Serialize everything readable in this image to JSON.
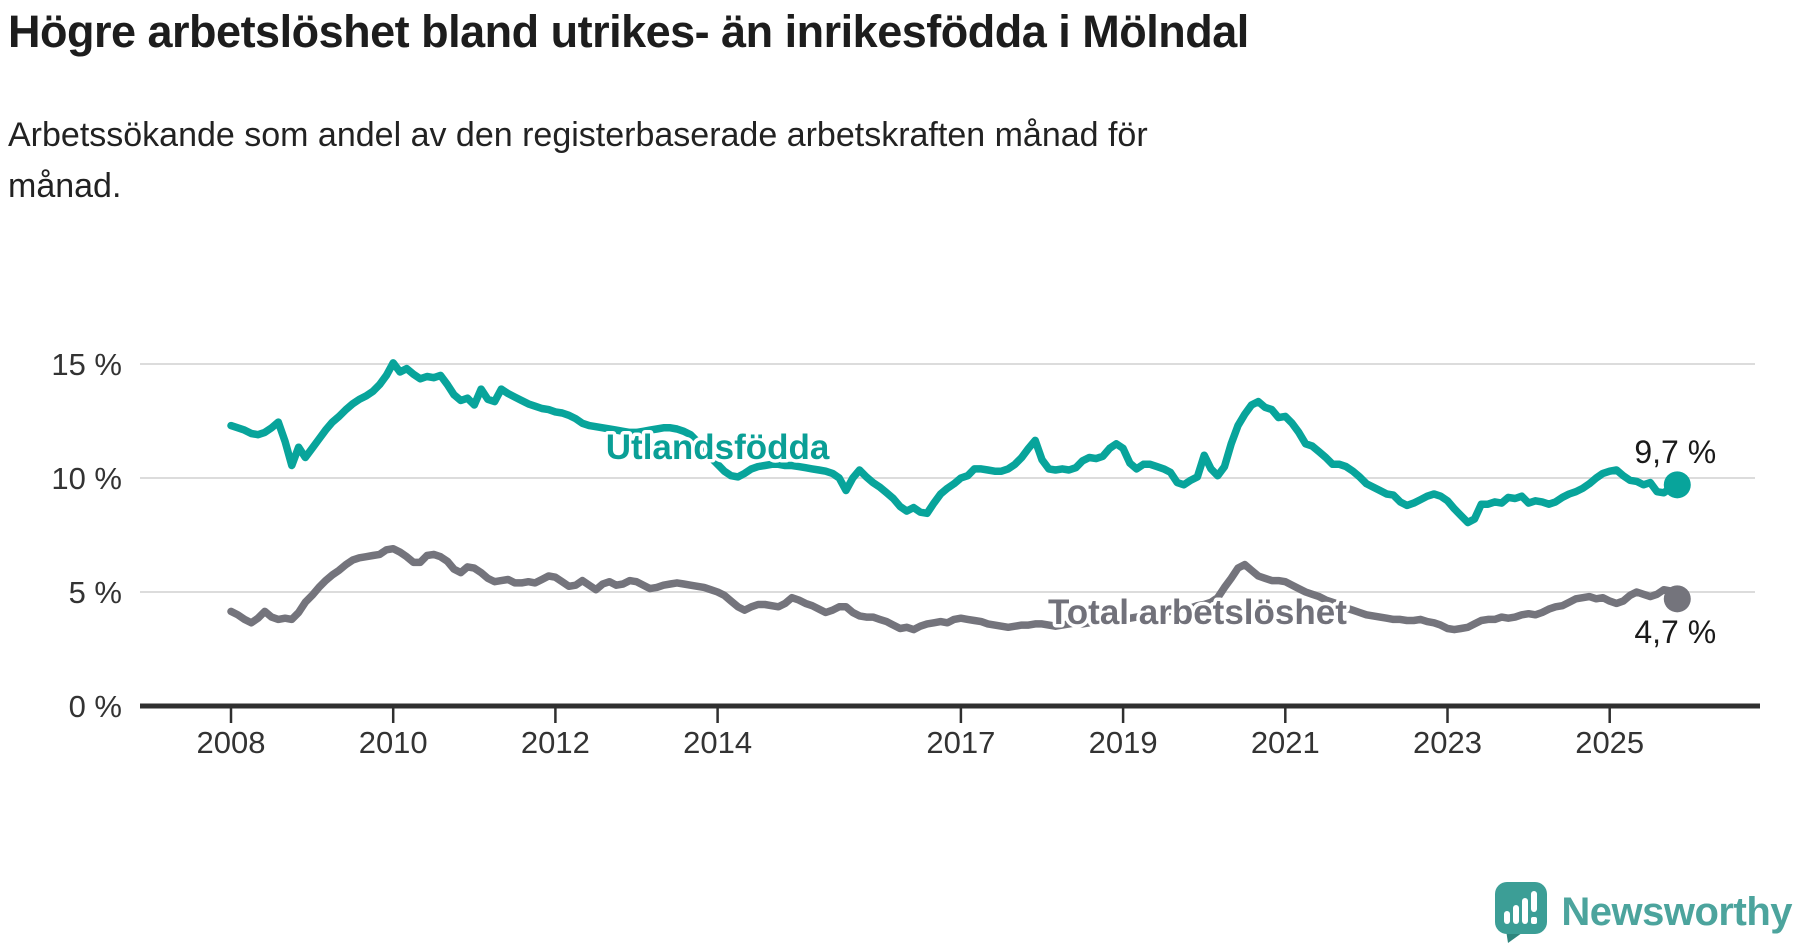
{
  "header": {
    "title": "Högre arbetslöshet bland utrikes- än inrikesfödda i Mölndal",
    "subtitle_line1": "Arbetssökande som andel av den registerbaserade arbetskraften månad för",
    "subtitle_line2": "månad."
  },
  "footer": {
    "brand": "Newsworthy",
    "brand_color": "#4CA49D",
    "logo_icon": "newsworthy-speech-bubble-bar-chart-icon"
  },
  "chart_data": {
    "type": "line",
    "title": "Högre arbetslöshet bland utrikes- än inrikesfödda i Mölndal",
    "x_start": "2008-01",
    "x_end": "2025-11",
    "frequency": "monthly",
    "grid": "horizontal",
    "ylim": [
      0,
      16
    ],
    "axis_color": "#2f2f2f",
    "gridline_color": "#dcdcdc",
    "tick_label_color": "#333333",
    "x_ticks": [
      2008,
      2010,
      2012,
      2014,
      2017,
      2019,
      2021,
      2023,
      2025
    ],
    "y_ticks": [
      {
        "value": 15,
        "label": "15 %"
      },
      {
        "value": 10,
        "label": "10 %"
      },
      {
        "value": 5,
        "label": "5 %"
      },
      {
        "value": 0,
        "label": "0 %"
      }
    ],
    "series": [
      {
        "name": "Utlandsfödda",
        "color": "#08a49b",
        "label_color": "#0a9f96",
        "end_label": "9,7 %",
        "end_value": 9.7,
        "end_label_position": "above",
        "label_anchor": {
          "month_index": 72,
          "value": 11.35
        },
        "values": [
          12.3,
          12.2,
          12.1,
          11.95,
          11.9,
          12.0,
          12.2,
          12.45,
          11.6,
          10.55,
          11.35,
          10.9,
          11.3,
          11.7,
          12.1,
          12.45,
          12.7,
          13.0,
          13.25,
          13.45,
          13.6,
          13.8,
          14.1,
          14.5,
          15.05,
          14.65,
          14.8,
          14.55,
          14.35,
          14.45,
          14.4,
          14.5,
          14.1,
          13.65,
          13.4,
          13.5,
          13.2,
          13.9,
          13.45,
          13.35,
          13.9,
          13.7,
          13.55,
          13.4,
          13.25,
          13.15,
          13.05,
          13.0,
          12.9,
          12.85,
          12.75,
          12.6,
          12.4,
          12.3,
          12.25,
          12.2,
          12.15,
          12.1,
          12.05,
          12.0,
          12.0,
          12.05,
          12.1,
          12.15,
          12.2,
          12.2,
          12.15,
          12.05,
          11.9,
          11.6,
          11.3,
          10.9,
          10.6,
          10.3,
          10.1,
          10.05,
          10.2,
          10.4,
          10.5,
          10.55,
          10.6,
          10.6,
          10.55,
          10.55,
          10.5,
          10.45,
          10.4,
          10.35,
          10.3,
          10.2,
          10.0,
          9.45,
          10.0,
          10.35,
          10.05,
          9.8,
          9.6,
          9.35,
          9.1,
          8.75,
          8.55,
          8.7,
          8.5,
          8.45,
          8.9,
          9.3,
          9.55,
          9.75,
          10.0,
          10.1,
          10.4,
          10.4,
          10.35,
          10.3,
          10.3,
          10.4,
          10.6,
          10.9,
          11.3,
          11.65,
          10.8,
          10.4,
          10.35,
          10.4,
          10.35,
          10.45,
          10.75,
          10.9,
          10.85,
          10.95,
          11.3,
          11.5,
          11.3,
          10.65,
          10.4,
          10.6,
          10.6,
          10.5,
          10.4,
          10.25,
          9.8,
          9.7,
          9.9,
          10.05,
          11.0,
          10.4,
          10.1,
          10.5,
          11.5,
          12.3,
          12.8,
          13.2,
          13.35,
          13.1,
          13.0,
          12.65,
          12.7,
          12.4,
          12.0,
          11.5,
          11.4,
          11.15,
          10.9,
          10.6,
          10.6,
          10.5,
          10.3,
          10.05,
          9.75,
          9.6,
          9.45,
          9.3,
          9.25,
          8.95,
          8.8,
          8.9,
          9.05,
          9.2,
          9.3,
          9.2,
          9.0,
          8.65,
          8.35,
          8.05,
          8.2,
          8.85,
          8.85,
          8.95,
          8.9,
          9.15,
          9.1,
          9.2,
          8.9,
          9.0,
          8.95,
          8.85,
          8.95,
          9.15,
          9.3,
          9.4,
          9.55,
          9.75,
          10.0,
          10.2,
          10.3,
          10.35,
          10.1,
          9.9,
          9.85,
          9.7,
          9.8,
          9.4,
          9.35,
          9.55,
          9.7
        ]
      },
      {
        "name": "Total arbetslöshet",
        "color": "#74747c",
        "label_color": "#71717a",
        "end_label": "4,7 %",
        "end_value": 4.7,
        "end_label_position": "below",
        "label_anchor": {
          "month_index": 143,
          "value": 4.12
        },
        "values": [
          4.15,
          4.0,
          3.8,
          3.65,
          3.85,
          4.15,
          3.9,
          3.8,
          3.85,
          3.8,
          4.1,
          4.55,
          4.85,
          5.2,
          5.5,
          5.75,
          5.95,
          6.2,
          6.4,
          6.5,
          6.55,
          6.6,
          6.65,
          6.85,
          6.9,
          6.75,
          6.55,
          6.3,
          6.3,
          6.6,
          6.65,
          6.55,
          6.35,
          6.0,
          5.85,
          6.1,
          6.05,
          5.85,
          5.6,
          5.45,
          5.5,
          5.55,
          5.4,
          5.4,
          5.45,
          5.4,
          5.55,
          5.7,
          5.65,
          5.45,
          5.25,
          5.3,
          5.5,
          5.3,
          5.1,
          5.35,
          5.45,
          5.3,
          5.35,
          5.5,
          5.45,
          5.3,
          5.15,
          5.2,
          5.3,
          5.35,
          5.4,
          5.35,
          5.3,
          5.25,
          5.2,
          5.1,
          5.0,
          4.85,
          4.6,
          4.35,
          4.2,
          4.35,
          4.45,
          4.45,
          4.4,
          4.35,
          4.5,
          4.75,
          4.65,
          4.5,
          4.4,
          4.25,
          4.1,
          4.2,
          4.35,
          4.35,
          4.1,
          3.95,
          3.9,
          3.9,
          3.8,
          3.7,
          3.55,
          3.4,
          3.45,
          3.35,
          3.5,
          3.6,
          3.65,
          3.7,
          3.65,
          3.8,
          3.85,
          3.8,
          3.75,
          3.7,
          3.6,
          3.55,
          3.5,
          3.45,
          3.5,
          3.55,
          3.55,
          3.6,
          3.6,
          3.55,
          3.5,
          3.55,
          3.6,
          3.65,
          3.6,
          3.65,
          3.7,
          3.7,
          3.75,
          3.8,
          3.8,
          3.85,
          3.9,
          3.95,
          4.0,
          4.05,
          4.1,
          4.15,
          4.2,
          4.25,
          4.3,
          4.4,
          4.45,
          4.55,
          4.75,
          5.2,
          5.6,
          6.05,
          6.2,
          5.95,
          5.7,
          5.6,
          5.5,
          5.5,
          5.45,
          5.3,
          5.15,
          5.0,
          4.9,
          4.8,
          4.65,
          4.55,
          4.45,
          4.3,
          4.2,
          4.1,
          4.0,
          3.95,
          3.9,
          3.85,
          3.8,
          3.8,
          3.75,
          3.75,
          3.8,
          3.7,
          3.65,
          3.55,
          3.4,
          3.35,
          3.4,
          3.45,
          3.6,
          3.75,
          3.8,
          3.8,
          3.9,
          3.85,
          3.9,
          4.0,
          4.05,
          4.0,
          4.1,
          4.25,
          4.35,
          4.4,
          4.55,
          4.7,
          4.75,
          4.8,
          4.7,
          4.75,
          4.6,
          4.5,
          4.6,
          4.85,
          5.0,
          4.9,
          4.8,
          4.9,
          5.1,
          5.05,
          4.7
        ]
      }
    ]
  }
}
